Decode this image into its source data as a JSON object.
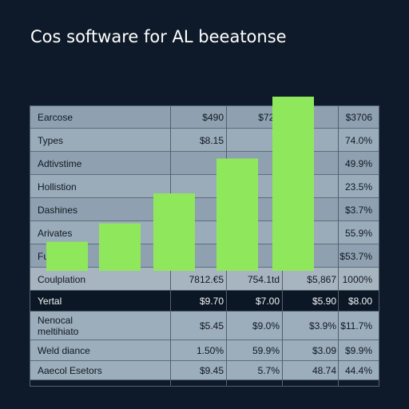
{
  "page": {
    "title": "Cos software for AL beeatonse"
  },
  "colors": {
    "background": "#0e1a29",
    "bar": "#8fe85c",
    "table_row": "#8fa1b0",
    "table_dark_row": "#0c1726"
  },
  "chart_data": {
    "type": "bar",
    "title": "Cos software for AL beeatonse",
    "series": [
      {
        "values": [
          30,
          49,
          80,
          116,
          180
        ]
      }
    ],
    "categories": [
      "",
      "",
      "",
      "",
      ""
    ],
    "ylim": [
      0,
      180
    ],
    "grid": true
  },
  "table": {
    "rows": [
      {
        "label": "Earcose",
        "c1": "$490",
        "c2": "$720",
        "c3": "",
        "c4": "$3706"
      },
      {
        "label": "Types",
        "c1": "$8.15",
        "c2": "",
        "c3": "",
        "c4": "74.0%"
      },
      {
        "label": "Adtivstime",
        "c1": "",
        "c2": "",
        "c3": "",
        "c4": "49.9%"
      },
      {
        "label": "Hollistion",
        "c1": "",
        "c2": "",
        "c3": "",
        "c4": "23.5%"
      },
      {
        "label": "Dashines",
        "c1": "",
        "c2": "",
        "c3": "",
        "c4": "$3.7%"
      },
      {
        "label": "Arivates",
        "c1": "",
        "c2": "",
        "c3": "",
        "c4": "55.9%"
      },
      {
        "label": "Furivates",
        "c1": "",
        "c2": "",
        "c3": "",
        "c4": "$53.7%"
      }
    ],
    "summary_rows": [
      {
        "label": "Coulplation",
        "c1": "7812.€5",
        "c2": "754.1td",
        "c3": "$5,867",
        "c4": "1000%"
      },
      {
        "label": "Yertal",
        "c1": "$9.70",
        "c2": "$7.00",
        "c3": "$5.90",
        "c4": "$8.00"
      },
      {
        "label": "Nenocal\nmeltihiato",
        "c1": "$5.45",
        "c2": "$9.0%",
        "c3": "$3.9%",
        "c4": "$11.7%"
      },
      {
        "label": "Weld diance",
        "c1": "1.50%",
        "c2": "59.9%",
        "c3": "$3.09",
        "c4": "$9.9%"
      },
      {
        "label": "Aaecol Esetors",
        "c1": "$9.45",
        "c2": "5.7%",
        "c3": "48.74",
        "c4": "44.4%"
      }
    ]
  }
}
